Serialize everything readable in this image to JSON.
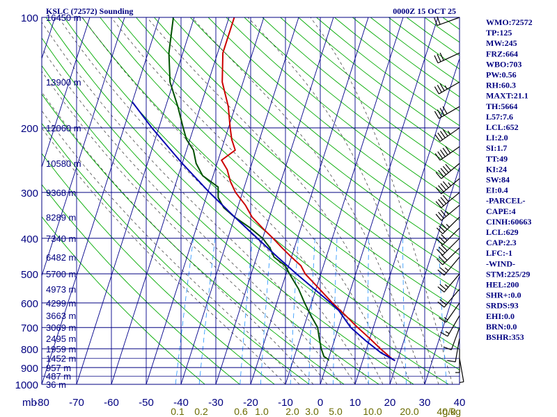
{
  "header": {
    "station": "KSLC (72572) Sounding",
    "time": "0000Z 15 OCT 25"
  },
  "chart_data": {
    "type": "line",
    "pressure_axis_label": "mb",
    "pressure_levels": [
      100,
      200,
      300,
      400,
      500,
      600,
      700,
      800,
      900,
      1000
    ],
    "pressure_labels": [
      "100",
      "200",
      "300",
      "400",
      "500",
      "600",
      "700",
      "800",
      "900",
      "1000"
    ],
    "temperature_ticks": [
      -80,
      -70,
      -60,
      -50,
      -40,
      -30,
      -20,
      -10,
      0,
      10,
      20,
      30,
      40
    ],
    "temperature_labels": [
      "-80",
      "-70",
      "-60",
      "-50",
      "-40",
      "-30",
      "-20",
      "-10",
      "0",
      "10",
      "20",
      "30",
      "40"
    ],
    "mixing_ratio_label_text": [
      "0.1",
      "0.2",
      "0.6",
      "1.0",
      "2.0",
      "3.0",
      "5.0",
      "10.0",
      "20.0",
      "40.0"
    ],
    "mixing_ratio_unit": "g/kg",
    "height_labels": [
      {
        "p": 100,
        "text": "16450 m"
      },
      {
        "p": 150,
        "text": "13900 m"
      },
      {
        "p": 200,
        "text": "12060 m"
      },
      {
        "p": 250,
        "text": "10580 m"
      },
      {
        "p": 300,
        "text": "9368 m"
      },
      {
        "p": 350,
        "text": "8289 m"
      },
      {
        "p": 400,
        "text": "7340 m"
      },
      {
        "p": 450,
        "text": "6482 m"
      },
      {
        "p": 500,
        "text": "5700 m"
      },
      {
        "p": 550,
        "text": "4973 m"
      },
      {
        "p": 600,
        "text": "4299 m"
      },
      {
        "p": 650,
        "text": "3663 m"
      },
      {
        "p": 700,
        "text": "3069 m"
      },
      {
        "p": 750,
        "text": "2495 m"
      },
      {
        "p": 800,
        "text": "1959 m"
      },
      {
        "p": 850,
        "text": "1452 m"
      },
      {
        "p": 900,
        "text": "957 m"
      },
      {
        "p": 950,
        "text": "487 m"
      },
      {
        "p": 1000,
        "text": "36 m"
      }
    ],
    "series": [
      {
        "role": "temperature",
        "color": "#cc0000",
        "points": [
          {
            "p": 100,
            "t": -58.5
          },
          {
            "p": 125,
            "t": -58.5
          },
          {
            "p": 150,
            "t": -56
          },
          {
            "p": 175,
            "t": -52
          },
          {
            "p": 200,
            "t": -49.5
          },
          {
            "p": 215,
            "t": -48
          },
          {
            "p": 230,
            "t": -46
          },
          {
            "p": 245,
            "t": -49
          },
          {
            "p": 260,
            "t": -46.5
          },
          {
            "p": 280,
            "t": -44.5
          },
          {
            "p": 300,
            "t": -42
          },
          {
            "p": 325,
            "t": -38
          },
          {
            "p": 350,
            "t": -35
          },
          {
            "p": 375,
            "t": -31
          },
          {
            "p": 400,
            "t": -27
          },
          {
            "p": 425,
            "t": -23.5
          },
          {
            "p": 450,
            "t": -20
          },
          {
            "p": 475,
            "t": -16.5
          },
          {
            "p": 500,
            "t": -14.5
          },
          {
            "p": 550,
            "t": -9
          },
          {
            "p": 600,
            "t": -4
          },
          {
            "p": 650,
            "t": 1
          },
          {
            "p": 700,
            "t": 5.5
          },
          {
            "p": 750,
            "t": 10
          },
          {
            "p": 800,
            "t": 14
          },
          {
            "p": 855,
            "t": 18.5
          },
          {
            "p": 862,
            "t": 19.3
          }
        ]
      },
      {
        "role": "dewpoint",
        "color": "#005000",
        "points": [
          {
            "p": 100,
            "t": -76
          },
          {
            "p": 125,
            "t": -74
          },
          {
            "p": 150,
            "t": -71
          },
          {
            "p": 175,
            "t": -66.5
          },
          {
            "p": 200,
            "t": -63
          },
          {
            "p": 215,
            "t": -61
          },
          {
            "p": 230,
            "t": -58
          },
          {
            "p": 250,
            "t": -56
          },
          {
            "p": 270,
            "t": -53
          },
          {
            "p": 290,
            "t": -47.5
          },
          {
            "p": 310,
            "t": -46.5
          },
          {
            "p": 330,
            "t": -44
          },
          {
            "p": 350,
            "t": -40
          },
          {
            "p": 375,
            "t": -34.5
          },
          {
            "p": 400,
            "t": -30
          },
          {
            "p": 425,
            "t": -27
          },
          {
            "p": 450,
            "t": -25
          },
          {
            "p": 475,
            "t": -21
          },
          {
            "p": 500,
            "t": -19
          },
          {
            "p": 550,
            "t": -15
          },
          {
            "p": 600,
            "t": -12
          },
          {
            "p": 650,
            "t": -9
          },
          {
            "p": 700,
            "t": -6
          },
          {
            "p": 750,
            "t": -4.5
          },
          {
            "p": 800,
            "t": -3
          },
          {
            "p": 840,
            "t": -1.5
          },
          {
            "p": 855,
            "t": 0
          },
          {
            "p": 862,
            "t": 0.2
          }
        ]
      },
      {
        "role": "parcel",
        "color": "#0000b0",
        "points": [
          {
            "p": 862,
            "t": 19.3
          },
          {
            "p": 820,
            "t": 14.5
          },
          {
            "p": 760,
            "t": 9
          },
          {
            "p": 700,
            "t": 3.5
          },
          {
            "p": 629,
            "t": -1.5
          },
          {
            "p": 600,
            "t": -4.5
          },
          {
            "p": 550,
            "t": -10.5
          },
          {
            "p": 500,
            "t": -17
          },
          {
            "p": 450,
            "t": -24
          },
          {
            "p": 400,
            "t": -31.5
          },
          {
            "p": 350,
            "t": -40
          },
          {
            "p": 300,
            "t": -49.5
          },
          {
            "p": 250,
            "t": -60
          },
          {
            "p": 200,
            "t": -72
          },
          {
            "p": 170,
            "t": -80
          }
        ]
      }
    ],
    "wind_barbs": [
      {
        "p": 100,
        "dir": 250,
        "spd": 20
      },
      {
        "p": 125,
        "dir": 245,
        "spd": 30
      },
      {
        "p": 150,
        "dir": 240,
        "spd": 35
      },
      {
        "p": 175,
        "dir": 240,
        "spd": 40
      },
      {
        "p": 200,
        "dir": 235,
        "spd": 45
      },
      {
        "p": 225,
        "dir": 235,
        "spd": 50
      },
      {
        "p": 250,
        "dir": 230,
        "spd": 50
      },
      {
        "p": 275,
        "dir": 230,
        "spd": 45
      },
      {
        "p": 300,
        "dir": 230,
        "spd": 40
      },
      {
        "p": 325,
        "dir": 230,
        "spd": 35
      },
      {
        "p": 350,
        "dir": 225,
        "spd": 35
      },
      {
        "p": 375,
        "dir": 225,
        "spd": 30
      },
      {
        "p": 400,
        "dir": 225,
        "spd": 30
      },
      {
        "p": 425,
        "dir": 225,
        "spd": 30
      },
      {
        "p": 450,
        "dir": 220,
        "spd": 25
      },
      {
        "p": 500,
        "dir": 220,
        "spd": 25
      },
      {
        "p": 550,
        "dir": 220,
        "spd": 20
      },
      {
        "p": 600,
        "dir": 215,
        "spd": 15
      },
      {
        "p": 650,
        "dir": 210,
        "spd": 15
      },
      {
        "p": 700,
        "dir": 200,
        "spd": 10
      },
      {
        "p": 750,
        "dir": 190,
        "spd": 10
      },
      {
        "p": 800,
        "dir": 180,
        "spd": 5
      },
      {
        "p": 850,
        "dir": 170,
        "spd": 5
      }
    ]
  },
  "indices": [
    "WMO:72572",
    "TP:125",
    "MW:245",
    "FRZ:664",
    "WBO:703",
    "PW:0.56",
    "RH:60.3",
    "MAXT:21.1",
    "TH:5664",
    "L57:7.6",
    "LCL:652",
    "LI:2.0",
    "SI:1.7",
    "TT:49",
    "KI:24",
    "SW:84",
    "EI:0.4",
    "-PARCEL-",
    "CAPE:4",
    "CINH:60663",
    "LCL:629",
    "CAP:2.3",
    "LFC:-1",
    "-WIND-",
    "STM:225/29",
    "HEL:200",
    "SHR+:0.0",
    "SRDS:93",
    "EHI:0.0",
    "BRN:0.0",
    "BSHR:353"
  ],
  "colors": {
    "frame": "#000080",
    "isotherm": "#00008b",
    "dry_adiabat": "#00aa00",
    "moist_adiabat": "#2f2f2f",
    "mixing_ratio": "#1e90ff",
    "temperature": "#cc0000",
    "dewpoint": "#005000",
    "parcel": "#0000b0"
  }
}
